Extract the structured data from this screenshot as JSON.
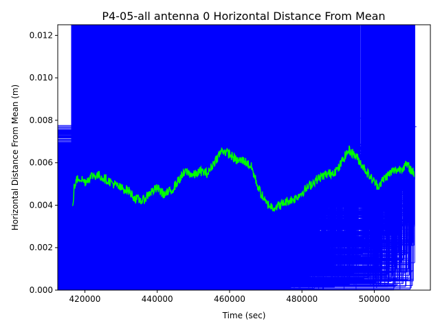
{
  "chart_data": {
    "type": "scatter",
    "title": "P4-05-all antenna 0 Horizontal Distance From Mean",
    "xlabel": "Time (sec)",
    "ylabel": "Horizontal Distance From Mean (m)",
    "xlim": [
      412500,
      515500
    ],
    "ylim": [
      0,
      0.0125
    ],
    "xticks": [
      420000,
      440000,
      460000,
      480000,
      500000
    ],
    "xtick_labels": [
      "420000",
      "440000",
      "460000",
      "480000",
      "500000"
    ],
    "yticks": [
      0.0,
      0.002,
      0.004,
      0.006,
      0.008,
      0.01,
      0.012
    ],
    "ytick_labels": [
      "0.000",
      "0.002",
      "0.004",
      "0.006",
      "0.008",
      "0.010",
      "0.012"
    ],
    "grid": false,
    "legend": "none",
    "series": [
      {
        "marker": "+",
        "color": "#0000ff",
        "points": [
          [
            424500,
            0.0088
          ],
          [
            429000,
            0.0078
          ],
          [
            435500,
            0.008
          ],
          [
            439500,
            0.0079
          ],
          [
            443000,
            0.0068
          ],
          [
            493000,
            0.0083
          ],
          [
            494000,
            0.0081
          ],
          [
            496000,
            0.0081
          ],
          [
            417000,
            0.0065
          ],
          [
            419000,
            0.0073
          ],
          [
            421000,
            0.007
          ],
          [
            422500,
            0.0074
          ],
          [
            423500,
            0.0076
          ],
          [
            426500,
            0.0067
          ],
          [
            428500,
            0.0069
          ],
          [
            432000,
            0.0062
          ],
          [
            434000,
            0.0066
          ],
          [
            436500,
            0.0072
          ],
          [
            438000,
            0.0065
          ],
          [
            440500,
            0.0074
          ],
          [
            442000,
            0.007
          ],
          [
            444500,
            0.0062
          ],
          [
            446500,
            0.006
          ],
          [
            448500,
            0.0065
          ],
          [
            451000,
            0.006
          ],
          [
            453500,
            0.0061
          ],
          [
            455000,
            0.0063
          ],
          [
            458000,
            0.0062
          ],
          [
            460500,
            0.0064
          ],
          [
            463000,
            0.006
          ],
          [
            465500,
            0.0056
          ],
          [
            467500,
            0.0056
          ],
          [
            470000,
            0.0063
          ],
          [
            472000,
            0.0065
          ],
          [
            474000,
            0.0062
          ],
          [
            476000,
            0.006
          ],
          [
            478000,
            0.006
          ],
          [
            480000,
            0.0058
          ],
          [
            482000,
            0.0052
          ],
          [
            485000,
            0.0056
          ],
          [
            487500,
            0.0058
          ],
          [
            490000,
            0.0058
          ],
          [
            491500,
            0.0068
          ],
          [
            492500,
            0.0077
          ],
          [
            495000,
            0.0074
          ],
          [
            497000,
            0.0067
          ],
          [
            499000,
            0.0062
          ],
          [
            500500,
            0.0058
          ],
          [
            502000,
            0.006
          ],
          [
            504000,
            0.0062
          ],
          [
            506000,
            0.0064
          ],
          [
            507500,
            0.0068
          ],
          [
            509000,
            0.0065
          ],
          [
            510500,
            0.0076
          ],
          [
            511000,
            0.0077
          ]
        ]
      },
      {
        "color": "#00ff00",
        "line": "mean",
        "points": [
          [
            416600,
            0.0038
          ],
          [
            417000,
            0.0048
          ],
          [
            417800,
            0.0052
          ],
          [
            418500,
            0.0053
          ],
          [
            420000,
            0.0051
          ],
          [
            422000,
            0.0054
          ],
          [
            424000,
            0.0054
          ],
          [
            426000,
            0.0052
          ],
          [
            428000,
            0.005
          ],
          [
            430000,
            0.0048
          ],
          [
            432000,
            0.0047
          ],
          [
            434000,
            0.0043
          ],
          [
            436000,
            0.0042
          ],
          [
            438000,
            0.0046
          ],
          [
            440000,
            0.0048
          ],
          [
            442000,
            0.0045
          ],
          [
            444000,
            0.0047
          ],
          [
            446000,
            0.0052
          ],
          [
            448000,
            0.0056
          ],
          [
            450000,
            0.0054
          ],
          [
            452000,
            0.0056
          ],
          [
            454000,
            0.0055
          ],
          [
            456000,
            0.0061
          ],
          [
            458000,
            0.0066
          ],
          [
            460000,
            0.0064
          ],
          [
            462000,
            0.0061
          ],
          [
            464000,
            0.0061
          ],
          [
            466000,
            0.0058
          ],
          [
            468000,
            0.0048
          ],
          [
            470000,
            0.0041
          ],
          [
            472000,
            0.0039
          ],
          [
            474000,
            0.004
          ],
          [
            476000,
            0.0042
          ],
          [
            478000,
            0.0043
          ],
          [
            480000,
            0.0046
          ],
          [
            482000,
            0.0049
          ],
          [
            484000,
            0.0052
          ],
          [
            486000,
            0.0054
          ],
          [
            488000,
            0.0055
          ],
          [
            490000,
            0.0057
          ],
          [
            491500,
            0.0062
          ],
          [
            493000,
            0.0066
          ],
          [
            495000,
            0.0063
          ],
          [
            497000,
            0.0058
          ],
          [
            499000,
            0.0053
          ],
          [
            501000,
            0.0049
          ],
          [
            503000,
            0.0053
          ],
          [
            505000,
            0.0056
          ],
          [
            507000,
            0.0057
          ],
          [
            509000,
            0.0059
          ],
          [
            511000,
            0.0055
          ]
        ]
      }
    ],
    "dense_cloud": {
      "x_from": 416300,
      "x_to": 511200,
      "y_min": 0.0,
      "gaps": [
        [
          491000,
          491800
        ],
        [
          495800,
          496800
        ]
      ]
    }
  }
}
